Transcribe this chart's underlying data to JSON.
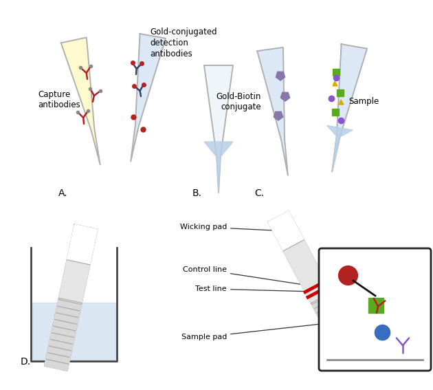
{
  "bg_color": "#ffffff",
  "tube_outline_color": "#b0b0b0",
  "tube_fill_yellow": "#fffacd",
  "tube_fill_blue_light": "#dce8f5",
  "liquid_blue": "#b8cfe8",
  "text_color": "#000000",
  "label_A": "A.",
  "label_B": "B.",
  "label_C": "C.",
  "label_D": "D.",
  "capture_antibodies_text": "Capture\nantibodies",
  "gold_conjugated_text": "Gold-conjugated\ndetection\nantibodies",
  "gold_biotin_text": "Gold-Biotin\nconjugate",
  "sample_text": "Sample",
  "wicking_pad_text": "Wicking pad",
  "control_line_text": "Control line",
  "test_line_text": "Test line",
  "sample_pad_text": "Sample pad",
  "red_color": "#b22222",
  "green_color": "#5aaa20",
  "blue_color": "#3a6dbf",
  "purple_color": "#8855cc",
  "dark_color": "#222222",
  "red_line_color": "#cc0000",
  "gray_color": "#999999",
  "dark_blue_y": "#334466",
  "yellow_tri": "#ddaa00"
}
